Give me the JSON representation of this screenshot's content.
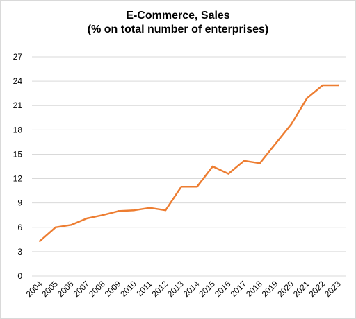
{
  "chart_data": {
    "type": "line",
    "title": "E-Commerce, Sales",
    "subtitle": "(% on total number of enterprises)",
    "categories": [
      "2004",
      "2005",
      "2006",
      "2007",
      "2008",
      "2009",
      "2010",
      "2011",
      "2012",
      "2013",
      "2014",
      "2015",
      "2016",
      "2017",
      "2018",
      "2019",
      "2020",
      "2021",
      "2022",
      "2023"
    ],
    "series": [
      {
        "values": [
          4.3,
          6.0,
          6.3,
          7.1,
          7.5,
          8.0,
          8.1,
          8.4,
          8.1,
          11.0,
          11.0,
          13.5,
          12.6,
          14.2,
          13.9,
          16.3,
          18.7,
          21.9,
          23.5,
          23.5
        ],
        "color": "#ed7d31"
      }
    ],
    "ylim": [
      0,
      27
    ],
    "yticks": [
      0,
      3,
      6,
      9,
      12,
      15,
      18,
      21,
      24,
      27
    ],
    "grid": true,
    "legend": "none",
    "xlabel": "",
    "ylabel": ""
  }
}
